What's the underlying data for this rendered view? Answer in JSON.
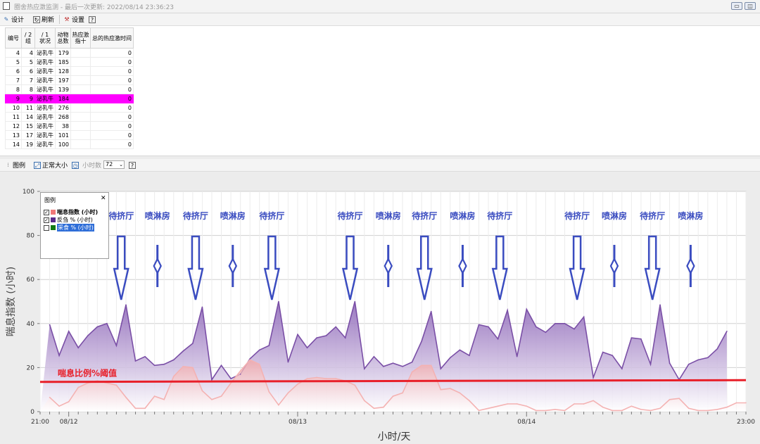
{
  "window": {
    "title": "圈舍热应激监测 - 最后一次更新: 2022/08/14 23:36:23",
    "minimize": "▭",
    "restore": "◫"
  },
  "toolbar1": {
    "design": "设计",
    "refresh": "刷新",
    "settings": "设置",
    "help": "?"
  },
  "table": {
    "headers": [
      "编号",
      "/ 2\n组",
      "/ 1\n状况",
      "动物\n总数",
      "热应激\n指十",
      "总的热应激时间"
    ],
    "rows": [
      {
        "id": "4",
        "group": "4",
        "status": "泌乳牛",
        "total": "179",
        "index": "",
        "time": "0"
      },
      {
        "id": "5",
        "group": "5",
        "status": "泌乳牛",
        "total": "185",
        "index": "",
        "time": "0"
      },
      {
        "id": "6",
        "group": "6",
        "status": "泌乳牛",
        "total": "128",
        "index": "",
        "time": "0"
      },
      {
        "id": "7",
        "group": "7",
        "status": "泌乳牛",
        "total": "197",
        "index": "",
        "time": "0"
      },
      {
        "id": "8",
        "group": "8",
        "status": "泌乳牛",
        "total": "139",
        "index": "",
        "time": "0"
      },
      {
        "id": "9",
        "group": "9",
        "status": "泌乳牛",
        "total": "184",
        "index": "",
        "time": "0",
        "selected": true
      },
      {
        "id": "10",
        "group": "11",
        "status": "泌乳牛",
        "total": "276",
        "index": "",
        "time": "0"
      },
      {
        "id": "11",
        "group": "14",
        "status": "泌乳牛",
        "total": "268",
        "index": "",
        "time": "0"
      },
      {
        "id": "12",
        "group": "15",
        "status": "泌乳牛",
        "total": "38",
        "index": "",
        "time": "0"
      },
      {
        "id": "13",
        "group": "17",
        "status": "泌乳牛",
        "total": "101",
        "index": "",
        "time": "0"
      },
      {
        "id": "14",
        "group": "19",
        "status": "泌乳牛",
        "total": "100",
        "index": "",
        "time": "0"
      }
    ]
  },
  "toolbar2": {
    "legend": "图例",
    "normal_size": "正常大小",
    "hours_label": "小时数",
    "hours_value": "72",
    "help": "?"
  },
  "legend": {
    "title": "图例",
    "close": "✕",
    "items": [
      {
        "label": "喘息指数 (小时)",
        "checked": true,
        "color": "#f07878"
      },
      {
        "label": "反刍 % (小时)",
        "checked": true,
        "color": "#5a2a8a"
      },
      {
        "label": "采食 % (小时)",
        "checked": false,
        "color": "#127a12"
      }
    ]
  },
  "chart_data": {
    "type": "area",
    "ylabel": "喘息指数 (小时)",
    "xlabel": "小时/天",
    "ylim": [
      0,
      100
    ],
    "y_ticks": [
      "0",
      "20",
      "40",
      "60",
      "80",
      "100"
    ],
    "x_range_hours": [
      0,
      74
    ],
    "x_tick_labels": [
      {
        "hour": 0,
        "label": "21:00"
      },
      {
        "hour": 3,
        "label": "08/12"
      },
      {
        "hour": 27,
        "label": "08/13"
      },
      {
        "hour": 51,
        "label": "08/14"
      },
      {
        "hour": 74,
        "label": "23:00"
      }
    ],
    "threshold": {
      "label": "喘息比例%阈值",
      "value": 13.5,
      "value_end": 14.3,
      "color": "#e8202a"
    },
    "series": [
      {
        "name": "反刍 % (小时)",
        "color": "#7a4fa6",
        "values": [
          39.5,
          25.5,
          36.5,
          29,
          34.5,
          38.5,
          40,
          30,
          48.5,
          23,
          25,
          21,
          21.5,
          23.5,
          27.5,
          31,
          47.5,
          14.5,
          21,
          15,
          17,
          24,
          28,
          30,
          50,
          22.5,
          35,
          29,
          33.5,
          34.5,
          38.5,
          33.5,
          50,
          19.5,
          25,
          20.5,
          22,
          20.5,
          22.5,
          32,
          45.5,
          19.5,
          24.5,
          28,
          25.5,
          39.5,
          38.5,
          33,
          46,
          25,
          46.5,
          38.5,
          36,
          40,
          40,
          37.5,
          43,
          15.5,
          27,
          25.5,
          19.5,
          33.5,
          33,
          21.5,
          48.5,
          22,
          14.5,
          21.5,
          23.5,
          24.5,
          28.5,
          36.5
        ]
      },
      {
        "name": "喘息指数 (小时)",
        "color": "#f4b2b2",
        "values": [
          6.5,
          2.5,
          4.5,
          11,
          13,
          14,
          13,
          12,
          6.5,
          1.5,
          1.5,
          7,
          5.5,
          16,
          20.5,
          20,
          9.5,
          5.5,
          7,
          13,
          18.5,
          23.5,
          21.5,
          9,
          3,
          8.5,
          12.5,
          15,
          15.5,
          15,
          15,
          14,
          12,
          5,
          1.5,
          2,
          7,
          8.5,
          18,
          21,
          21,
          10,
          10.5,
          8.5,
          5,
          0.5,
          1.5,
          2.5,
          3.5,
          3.5,
          2.5,
          0.5,
          0.5,
          1,
          0.5,
          3.5,
          3.5,
          5,
          2,
          0.5,
          0.5,
          2.5,
          1,
          0.5,
          1.5,
          5.5,
          6,
          1.5,
          0.5,
          0.5,
          1,
          2,
          4,
          4
        ]
      }
    ],
    "annotations": [
      {
        "hour": 8.5,
        "label": "待挤厅",
        "arrow": "down"
      },
      {
        "hour": 12.3,
        "label": "喷淋房",
        "arrow": "both"
      },
      {
        "hour": 16.3,
        "label": "待挤厅",
        "arrow": "down"
      },
      {
        "hour": 20.2,
        "label": "喷淋房",
        "arrow": "both"
      },
      {
        "hour": 24.3,
        "label": "待挤厅",
        "arrow": "down"
      },
      {
        "hour": 32.5,
        "label": "待挤厅",
        "arrow": "down"
      },
      {
        "hour": 36.5,
        "label": "喷淋房",
        "arrow": "both"
      },
      {
        "hour": 40.3,
        "label": "待挤厅",
        "arrow": "down"
      },
      {
        "hour": 44.3,
        "label": "喷淋房",
        "arrow": "both"
      },
      {
        "hour": 48.2,
        "label": "待挤厅",
        "arrow": "down"
      },
      {
        "hour": 56.3,
        "label": "待挤厅",
        "arrow": "down"
      },
      {
        "hour": 60.2,
        "label": "喷淋房",
        "arrow": "both"
      },
      {
        "hour": 64.2,
        "label": "待挤厅",
        "arrow": "down"
      },
      {
        "hour": 68.2,
        "label": "喷淋房",
        "arrow": "both"
      }
    ],
    "grid": true,
    "legend_position": "top-left"
  }
}
